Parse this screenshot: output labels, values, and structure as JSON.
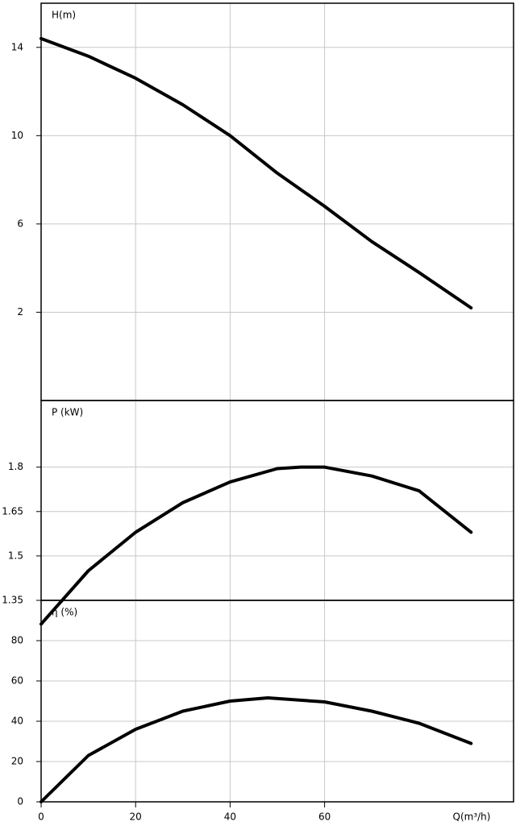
{
  "chart_data": [
    {
      "type": "line",
      "title": "H(m)",
      "x": [
        0,
        10,
        20,
        30,
        40,
        50,
        60,
        70,
        80,
        91
      ],
      "series": [
        {
          "color": "#000000",
          "values": [
            14.4,
            13.6,
            12.6,
            11.4,
            10.0,
            8.3,
            6.8,
            5.2,
            3.8,
            2.2
          ]
        }
      ],
      "xlim": [
        0,
        100
      ],
      "ylim": [
        -2,
        16
      ],
      "yticks": [
        2,
        6,
        10,
        14
      ],
      "grid": true
    },
    {
      "type": "line",
      "title": "P (kW)",
      "x": [
        0,
        10,
        20,
        30,
        40,
        50,
        55,
        60,
        70,
        80,
        91
      ],
      "series": [
        {
          "color": "#000000",
          "values": [
            1.27,
            1.45,
            1.58,
            1.68,
            1.75,
            1.795,
            1.8,
            1.8,
            1.77,
            1.72,
            1.58
          ]
        }
      ],
      "xlim": [
        0,
        100
      ],
      "ylim": [
        1.35,
        2.025
      ],
      "yticks": [
        1.35,
        1.5,
        1.65,
        1.8
      ],
      "grid": true
    },
    {
      "type": "line",
      "title": "η (%)",
      "x_label": "Q(m³/h)",
      "x": [
        0,
        10,
        20,
        30,
        40,
        48,
        60,
        70,
        80,
        91
      ],
      "series": [
        {
          "color": "#000000",
          "values": [
            0,
            23,
            36,
            45,
            50,
            51.6,
            49.6,
            45,
            39,
            29
          ]
        }
      ],
      "xlim": [
        0,
        100
      ],
      "xticks": [
        0,
        20,
        40,
        60
      ],
      "ylim": [
        0,
        100
      ],
      "yticks": [
        0,
        20,
        40,
        60,
        80
      ],
      "grid": true
    }
  ]
}
